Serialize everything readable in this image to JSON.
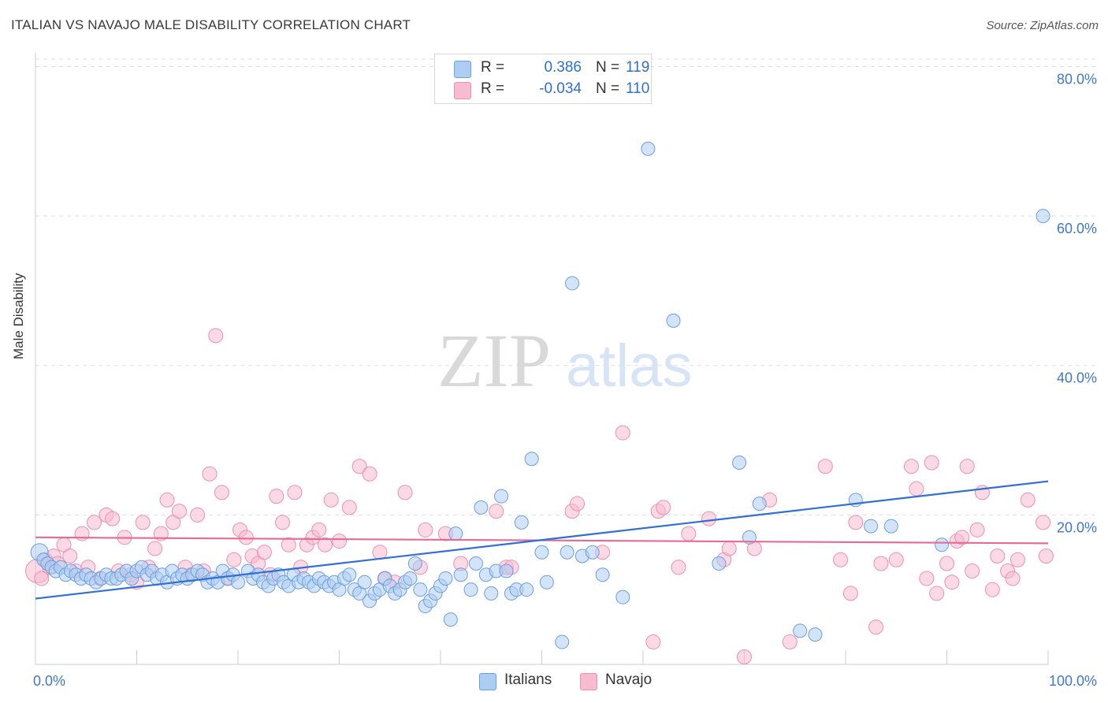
{
  "header": {
    "title": "ITALIAN VS NAVAJO MALE DISABILITY CORRELATION CHART",
    "source": "Source: ZipAtlas.com"
  },
  "watermark": {
    "zip": "ZIP",
    "atlas": "atlas"
  },
  "legend": {
    "italians": {
      "r_label": "R =",
      "r_value": "0.386",
      "n_label": "N =",
      "n_value": "119"
    },
    "navajo": {
      "r_label": "R =",
      "r_value": "-0.034",
      "n_label": "N =",
      "n_value": "110"
    }
  },
  "bottom_legend": {
    "italians": "Italians",
    "navajo": "Navajo"
  },
  "colors": {
    "italians_fill": "#aecdf2",
    "italians_stroke": "#6a9fe0",
    "italians_line": "#2f6fd6",
    "navajo_fill": "#f7bcd0",
    "navajo_stroke": "#ec8fae",
    "navajo_line": "#e76a95",
    "tick_text": "#3f77c8",
    "grid": "#dddddd"
  },
  "chart_data": {
    "type": "scatter",
    "title": "ITALIAN VS NAVAJO MALE DISABILITY CORRELATION CHART",
    "xlabel": "",
    "ylabel": "Male Disability",
    "xlim": [
      0,
      100
    ],
    "ylim": [
      0,
      81
    ],
    "x_tick_labels": [
      {
        "value": 0,
        "label": "0.0%"
      },
      {
        "value": 100,
        "label": "100.0%"
      }
    ],
    "y_tick_labels": [
      {
        "value": 20,
        "label": "20.0%"
      },
      {
        "value": 40,
        "label": "40.0%"
      },
      {
        "value": 60,
        "label": "60.0%"
      },
      {
        "value": 80,
        "label": "80.0%"
      }
    ],
    "grid": true,
    "legend_position": "top-center",
    "series": [
      {
        "name": "Italians",
        "r": 0.386,
        "n": 119,
        "trend": {
          "x": [
            0,
            100
          ],
          "y": [
            8.8,
            24.5
          ]
        },
        "points": [
          [
            0.4,
            15.0
          ],
          [
            0.8,
            14.0
          ],
          [
            1.2,
            13.5
          ],
          [
            1.6,
            13.0
          ],
          [
            2.0,
            12.5
          ],
          [
            2.5,
            13.0
          ],
          [
            3.0,
            12.0
          ],
          [
            3.5,
            12.5
          ],
          [
            4.0,
            12.0
          ],
          [
            4.5,
            11.5
          ],
          [
            5.0,
            12.0
          ],
          [
            5.5,
            11.5
          ],
          [
            6.0,
            11.0
          ],
          [
            6.5,
            11.5
          ],
          [
            7.0,
            12.0
          ],
          [
            7.5,
            11.5
          ],
          [
            8.0,
            11.5
          ],
          [
            8.5,
            12.0
          ],
          [
            9.0,
            12.5
          ],
          [
            9.5,
            11.5
          ],
          [
            10.0,
            12.5
          ],
          [
            10.5,
            13.0
          ],
          [
            11.0,
            12.0
          ],
          [
            11.5,
            12.5
          ],
          [
            12.0,
            11.5
          ],
          [
            12.5,
            12.0
          ],
          [
            13.0,
            11.0
          ],
          [
            13.5,
            12.5
          ],
          [
            14.0,
            11.5
          ],
          [
            14.5,
            12.0
          ],
          [
            15.0,
            11.5
          ],
          [
            15.5,
            12.0
          ],
          [
            16.0,
            12.5
          ],
          [
            16.5,
            12.0
          ],
          [
            17.0,
            11.0
          ],
          [
            17.5,
            11.5
          ],
          [
            18.0,
            11.0
          ],
          [
            18.5,
            12.5
          ],
          [
            19.0,
            11.5
          ],
          [
            19.5,
            12.0
          ],
          [
            20.0,
            11.0
          ],
          [
            21.0,
            12.5
          ],
          [
            21.5,
            11.5
          ],
          [
            22.0,
            12.0
          ],
          [
            22.5,
            11.0
          ],
          [
            23.0,
            10.5
          ],
          [
            23.5,
            11.5
          ],
          [
            24.0,
            12.0
          ],
          [
            24.5,
            11.0
          ],
          [
            25.0,
            10.5
          ],
          [
            25.5,
            12.0
          ],
          [
            26.0,
            11.0
          ],
          [
            26.5,
            11.5
          ],
          [
            27.0,
            11.0
          ],
          [
            27.5,
            10.5
          ],
          [
            28.0,
            11.5
          ],
          [
            28.5,
            11.0
          ],
          [
            29.0,
            10.5
          ],
          [
            29.5,
            11.0
          ],
          [
            30.0,
            10.0
          ],
          [
            30.5,
            11.5
          ],
          [
            31.0,
            12.0
          ],
          [
            31.5,
            10.0
          ],
          [
            32.0,
            9.5
          ],
          [
            32.5,
            11.0
          ],
          [
            33.0,
            8.5
          ],
          [
            33.5,
            9.5
          ],
          [
            34.0,
            10.0
          ],
          [
            34.5,
            11.5
          ],
          [
            35.0,
            10.5
          ],
          [
            35.5,
            9.5
          ],
          [
            36.0,
            10.0
          ],
          [
            36.5,
            11.0
          ],
          [
            37.0,
            11.5
          ],
          [
            37.5,
            13.5
          ],
          [
            38.0,
            10.0
          ],
          [
            38.5,
            7.8
          ],
          [
            39.0,
            8.5
          ],
          [
            39.5,
            9.5
          ],
          [
            40.0,
            10.5
          ],
          [
            40.5,
            11.5
          ],
          [
            41.0,
            6.0
          ],
          [
            41.5,
            17.5
          ],
          [
            42.0,
            12.0
          ],
          [
            43.0,
            10.0
          ],
          [
            43.5,
            13.5
          ],
          [
            44.0,
            21.0
          ],
          [
            44.5,
            12.0
          ],
          [
            45.0,
            9.5
          ],
          [
            45.5,
            12.5
          ],
          [
            46.0,
            22.5
          ],
          [
            46.5,
            12.5
          ],
          [
            47.0,
            9.5
          ],
          [
            47.5,
            10.0
          ],
          [
            48.0,
            19.0
          ],
          [
            48.5,
            10.0
          ],
          [
            49.0,
            27.5
          ],
          [
            50.0,
            15.0
          ],
          [
            50.5,
            11.0
          ],
          [
            52.0,
            3.0
          ],
          [
            52.5,
            15.0
          ],
          [
            53.0,
            51.0
          ],
          [
            54.0,
            14.5
          ],
          [
            55.0,
            15.0
          ],
          [
            56.0,
            12.0
          ],
          [
            58.0,
            9.0
          ],
          [
            60.5,
            69.0
          ],
          [
            63.0,
            46.0
          ],
          [
            67.5,
            13.5
          ],
          [
            69.5,
            27.0
          ],
          [
            70.5,
            17.0
          ],
          [
            71.5,
            21.5
          ],
          [
            75.5,
            4.5
          ],
          [
            77.0,
            4.0
          ],
          [
            81.0,
            22.0
          ],
          [
            82.5,
            18.5
          ],
          [
            84.5,
            18.5
          ],
          [
            89.5,
            16.0
          ],
          [
            99.5,
            60.0
          ]
        ]
      },
      {
        "name": "Navajo",
        "r": -0.034,
        "n": 110,
        "trend": {
          "x": [
            0,
            100
          ],
          "y": [
            17.0,
            16.2
          ]
        },
        "points": [
          [
            0.2,
            12.5
          ],
          [
            0.6,
            11.5
          ],
          [
            1.0,
            14.0
          ],
          [
            1.4,
            13.0
          ],
          [
            1.8,
            14.5
          ],
          [
            2.2,
            13.5
          ],
          [
            2.8,
            16.0
          ],
          [
            3.4,
            14.5
          ],
          [
            4.0,
            12.5
          ],
          [
            4.6,
            17.5
          ],
          [
            5.2,
            13.0
          ],
          [
            5.8,
            19.0
          ],
          [
            6.4,
            11.5
          ],
          [
            7.0,
            20.0
          ],
          [
            7.6,
            19.5
          ],
          [
            8.2,
            12.5
          ],
          [
            8.8,
            17.0
          ],
          [
            9.4,
            12.0
          ],
          [
            10.0,
            11.0
          ],
          [
            10.6,
            19.0
          ],
          [
            11.2,
            13.0
          ],
          [
            11.8,
            15.5
          ],
          [
            12.4,
            17.5
          ],
          [
            13.0,
            22.0
          ],
          [
            13.6,
            19.0
          ],
          [
            14.2,
            20.5
          ],
          [
            14.8,
            13.0
          ],
          [
            15.4,
            12.0
          ],
          [
            16.0,
            20.0
          ],
          [
            16.6,
            12.5
          ],
          [
            17.2,
            25.5
          ],
          [
            17.8,
            44.0
          ],
          [
            18.4,
            23.0
          ],
          [
            19.0,
            11.5
          ],
          [
            19.6,
            14.0
          ],
          [
            20.2,
            18.0
          ],
          [
            20.8,
            17.0
          ],
          [
            21.4,
            14.5
          ],
          [
            22.0,
            13.5
          ],
          [
            22.6,
            15.0
          ],
          [
            23.2,
            12.0
          ],
          [
            23.8,
            22.5
          ],
          [
            24.4,
            19.0
          ],
          [
            25.0,
            16.0
          ],
          [
            25.6,
            23.0
          ],
          [
            26.2,
            13.0
          ],
          [
            26.8,
            16.0
          ],
          [
            27.4,
            17.0
          ],
          [
            28.0,
            18.0
          ],
          [
            28.6,
            16.0
          ],
          [
            29.2,
            22.0
          ],
          [
            30.0,
            16.5
          ],
          [
            31.0,
            21.0
          ],
          [
            32.0,
            26.5
          ],
          [
            33.0,
            25.5
          ],
          [
            34.0,
            15.0
          ],
          [
            34.5,
            11.5
          ],
          [
            35.5,
            11.0
          ],
          [
            36.5,
            23.0
          ],
          [
            38.0,
            13.0
          ],
          [
            38.5,
            18.0
          ],
          [
            40.5,
            17.5
          ],
          [
            42.0,
            13.5
          ],
          [
            45.5,
            20.5
          ],
          [
            46.5,
            13.0
          ],
          [
            47.0,
            13.0
          ],
          [
            53.0,
            20.5
          ],
          [
            53.5,
            21.5
          ],
          [
            56.0,
            15.0
          ],
          [
            58.0,
            31.0
          ],
          [
            61.0,
            3.0
          ],
          [
            61.5,
            20.5
          ],
          [
            62.0,
            21.0
          ],
          [
            63.5,
            13.0
          ],
          [
            64.5,
            17.5
          ],
          [
            66.5,
            19.5
          ],
          [
            68.0,
            14.0
          ],
          [
            68.5,
            15.5
          ],
          [
            70.0,
            1.0
          ],
          [
            71.0,
            15.5
          ],
          [
            72.5,
            22.0
          ],
          [
            74.5,
            3.0
          ],
          [
            78.0,
            26.5
          ],
          [
            79.5,
            14.0
          ],
          [
            80.5,
            9.5
          ],
          [
            81.0,
            19.0
          ],
          [
            83.0,
            5.0
          ],
          [
            83.5,
            13.5
          ],
          [
            85.0,
            14.0
          ],
          [
            86.5,
            26.5
          ],
          [
            87.0,
            23.5
          ],
          [
            88.0,
            11.5
          ],
          [
            88.5,
            27.0
          ],
          [
            89.0,
            9.5
          ],
          [
            90.0,
            13.5
          ],
          [
            90.5,
            11.0
          ],
          [
            91.0,
            16.5
          ],
          [
            91.5,
            17.0
          ],
          [
            92.0,
            26.5
          ],
          [
            92.5,
            12.5
          ],
          [
            93.0,
            18.0
          ],
          [
            93.5,
            23.0
          ],
          [
            94.5,
            10.0
          ],
          [
            95.0,
            14.5
          ],
          [
            96.0,
            12.5
          ],
          [
            96.5,
            11.5
          ],
          [
            97.0,
            14.0
          ],
          [
            98.0,
            22.0
          ],
          [
            99.5,
            19.0
          ],
          [
            99.8,
            14.5
          ]
        ]
      }
    ]
  }
}
